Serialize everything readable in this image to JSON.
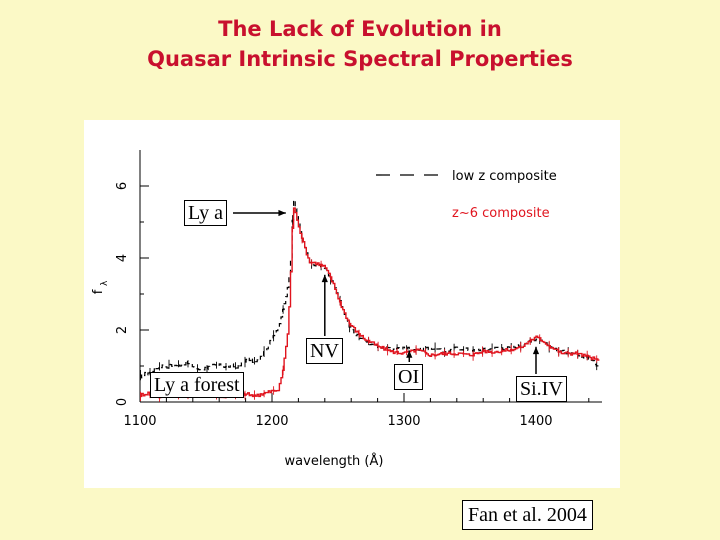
{
  "slide": {
    "title_line1": "The Lack of Evolution in",
    "title_line2": "Quasar Intrinsic Spectral Properties",
    "citation": "Fan et al. 2004"
  },
  "chart_data": {
    "type": "line",
    "xlabel": "wavelength (Å)",
    "ylabel": "f",
    "ylabel_subscript": "λ",
    "xlim": [
      1100,
      1450
    ],
    "ylim": [
      0,
      7
    ],
    "xticks": [
      1100,
      1200,
      1300,
      1400
    ],
    "yticks": [
      0,
      2,
      4,
      6
    ],
    "legend_position": "top-right",
    "grid": false,
    "series": [
      {
        "name": "low z composite",
        "color": "#000000",
        "style": "dashed",
        "x": [
          1100,
          1105,
          1115,
          1125,
          1135,
          1145,
          1155,
          1165,
          1175,
          1182,
          1188,
          1195,
          1200,
          1205,
          1208,
          1212,
          1214,
          1215,
          1216,
          1218,
          1222,
          1228,
          1234,
          1240,
          1246,
          1252,
          1258,
          1264,
          1270,
          1280,
          1290,
          1300,
          1310,
          1320,
          1330,
          1340,
          1350,
          1360,
          1370,
          1380,
          1390,
          1395,
          1400,
          1405,
          1410,
          1420,
          1430,
          1440,
          1447
        ],
        "y": [
          0.7,
          0.8,
          1.0,
          1.0,
          1.1,
          0.9,
          1.0,
          1.0,
          1.0,
          1.2,
          1.1,
          1.4,
          1.8,
          2.1,
          2.6,
          3.2,
          4.0,
          4.9,
          5.7,
          5.3,
          4.6,
          3.9,
          3.8,
          3.7,
          3.3,
          2.7,
          2.1,
          1.85,
          1.7,
          1.55,
          1.45,
          1.5,
          1.45,
          1.5,
          1.4,
          1.5,
          1.45,
          1.45,
          1.5,
          1.5,
          1.6,
          1.7,
          1.75,
          1.7,
          1.55,
          1.4,
          1.3,
          1.2,
          1.0
        ]
      },
      {
        "name": "z~6 composite",
        "color": "#e0141e",
        "style": "solid",
        "x": [
          1100,
          1105,
          1115,
          1125,
          1135,
          1145,
          1155,
          1165,
          1175,
          1182,
          1188,
          1195,
          1200,
          1205,
          1208,
          1212,
          1214,
          1215,
          1216,
          1218,
          1222,
          1228,
          1234,
          1240,
          1246,
          1252,
          1258,
          1264,
          1270,
          1280,
          1290,
          1300,
          1310,
          1320,
          1330,
          1340,
          1350,
          1360,
          1370,
          1380,
          1390,
          1395,
          1400,
          1405,
          1410,
          1420,
          1430,
          1440,
          1447
        ],
        "y": [
          0.2,
          0.25,
          0.15,
          0.25,
          0.2,
          0.3,
          0.2,
          0.15,
          0.25,
          0.2,
          0.2,
          0.25,
          0.3,
          0.35,
          0.9,
          2.0,
          3.6,
          4.7,
          5.4,
          5.2,
          4.6,
          3.9,
          3.85,
          3.75,
          3.3,
          2.7,
          2.2,
          1.95,
          1.75,
          1.55,
          1.4,
          1.35,
          1.45,
          1.3,
          1.35,
          1.35,
          1.3,
          1.4,
          1.4,
          1.45,
          1.55,
          1.7,
          1.8,
          1.7,
          1.55,
          1.35,
          1.35,
          1.25,
          1.15
        ]
      }
    ],
    "annotations": [
      {
        "id": "lya",
        "text": "Ly a",
        "x": 1215,
        "y": 5.5
      },
      {
        "id": "lya-forest",
        "text": "Ly a forest",
        "x": 1175,
        "y": 0.45
      },
      {
        "id": "nv",
        "text": "NV",
        "x": 1240,
        "y": 3.7
      },
      {
        "id": "oi",
        "text": "OI",
        "x": 1304,
        "y": 1.6
      },
      {
        "id": "siiv",
        "text": "Si.IV",
        "x": 1400,
        "y": 1.7
      }
    ]
  }
}
